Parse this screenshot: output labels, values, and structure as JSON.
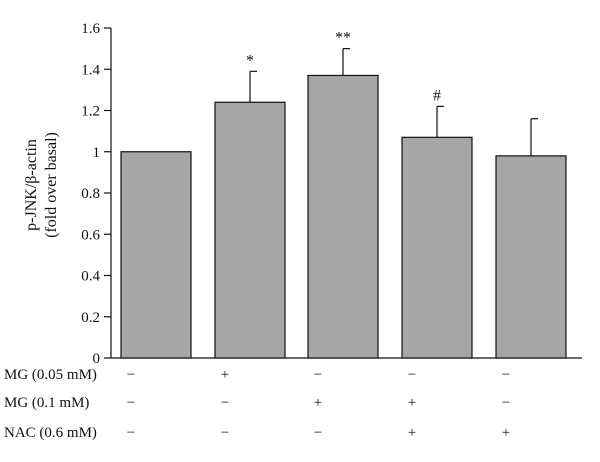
{
  "chart_data": {
    "type": "bar",
    "ylabel_line1": "p-JNK/β-actin",
    "ylabel_line2": "(fold over basal)",
    "ylim": [
      0,
      1.6
    ],
    "yticks": [
      "0",
      "0.2",
      "0.4",
      "0.6",
      "0.8",
      "1",
      "1.2",
      "1.4",
      "1.6"
    ],
    "ytick_values": [
      0,
      0.2,
      0.4,
      0.6,
      0.8,
      1.0,
      1.2,
      1.4,
      1.6
    ],
    "values": [
      1.0,
      1.24,
      1.37,
      1.07,
      0.98
    ],
    "errors": [
      0,
      0.15,
      0.13,
      0.15,
      0.18
    ],
    "significance": [
      "",
      "*",
      "**",
      "#",
      ""
    ],
    "bar_color": "#a6a6a6",
    "treatments": [
      {
        "label": "MG (0.05 mM)",
        "marks": [
          "−",
          "+",
          "−",
          "−",
          "−"
        ]
      },
      {
        "label": "MG (0.1 mM)",
        "marks": [
          "−",
          "−",
          "+",
          "+",
          "−"
        ]
      },
      {
        "label": "NAC (0.6 mM)",
        "marks": [
          "−",
          "−",
          "−",
          "+",
          "+"
        ]
      }
    ]
  }
}
